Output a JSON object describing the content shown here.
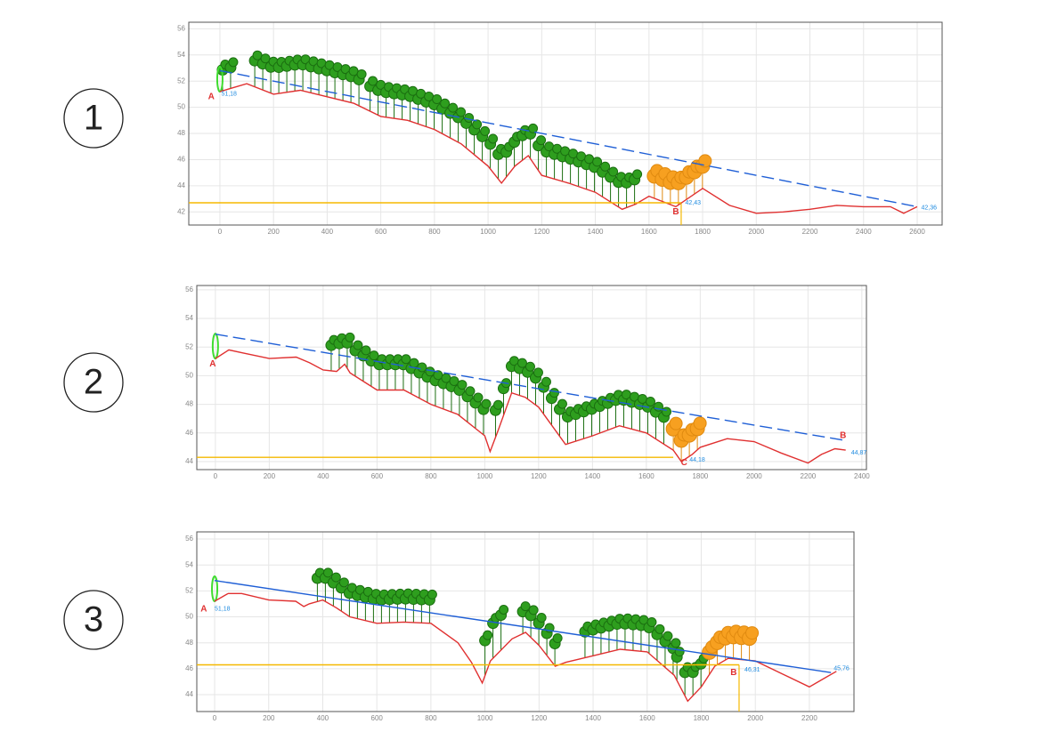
{
  "chart_data": [
    {
      "type": "line",
      "panel_label": "1",
      "xlim": [
        -116,
        2693
      ],
      "ylim": [
        41,
        56.5
      ],
      "xticks": [
        0,
        200,
        400,
        600,
        800,
        1000,
        1200,
        1400,
        1600,
        1800,
        2000,
        2200,
        2400,
        2600
      ],
      "yticks": [
        42,
        44,
        46,
        48,
        50,
        52,
        54,
        56
      ],
      "grid": true,
      "series": [
        {
          "color": "#e03030",
          "x": [
            0,
            100,
            200,
            300,
            400,
            500,
            600,
            700,
            800,
            900,
            1000,
            1050,
            1100,
            1150,
            1200,
            1300,
            1400,
            1500,
            1550,
            1600,
            1700,
            1800,
            1900,
            2000,
            2100,
            2200,
            2300,
            2400,
            2500,
            2550,
            2600
          ],
          "values": [
            51.2,
            51.8,
            51.0,
            51.3,
            50.8,
            50.3,
            49.3,
            49.0,
            48.3,
            47.2,
            45.5,
            44.2,
            45.5,
            46.3,
            44.8,
            44.2,
            43.5,
            42.2,
            42.6,
            43.2,
            42.4,
            43.8,
            42.5,
            41.9,
            42.0,
            42.2,
            42.5,
            42.4,
            42.4,
            41.9,
            42.4
          ]
        },
        {
          "color": "#1f5fd6",
          "dashed": true,
          "x": [
            0,
            2600
          ],
          "values": [
            52.8,
            42.4
          ]
        },
        {
          "color": "#f5b800",
          "x": [
            -116,
            1720
          ],
          "values": [
            42.7,
            42.7
          ]
        }
      ],
      "annotations": [
        "A",
        "51,18",
        "B",
        "42,43",
        "42,36"
      ]
    },
    {
      "type": "line",
      "panel_label": "2",
      "xlim": [
        -69,
        2417
      ],
      "ylim": [
        43.44,
        56.3
      ],
      "xticks": [
        0,
        200,
        400,
        600,
        800,
        1000,
        1200,
        1400,
        1600,
        1800,
        2000,
        2200,
        2400
      ],
      "yticks": [
        44,
        46,
        48,
        50,
        52,
        54,
        56
      ],
      "grid": true,
      "series": [
        {
          "color": "#e03030",
          "x": [
            0,
            50,
            100,
            200,
            300,
            350,
            400,
            450,
            480,
            500,
            600,
            700,
            800,
            900,
            1000,
            1020,
            1050,
            1100,
            1150,
            1200,
            1300,
            1400,
            1500,
            1600,
            1700,
            1730,
            1770,
            1800,
            1900,
            2000,
            2100,
            2200,
            2250,
            2300,
            2340
          ],
          "values": [
            51.2,
            51.8,
            51.6,
            51.2,
            51.3,
            50.9,
            50.4,
            50.3,
            50.8,
            50.2,
            49.0,
            49.0,
            48.0,
            47.3,
            45.8,
            44.7,
            46.2,
            48.8,
            48.5,
            47.8,
            45.2,
            45.8,
            46.5,
            46.0,
            44.8,
            44.0,
            44.5,
            45.0,
            45.6,
            45.4,
            44.6,
            43.9,
            44.5,
            44.9,
            44.8
          ]
        },
        {
          "color": "#1f5fd6",
          "dashed": true,
          "x": [
            0,
            2330
          ],
          "values": [
            52.9,
            45.5
          ]
        },
        {
          "color": "#f5b800",
          "x": [
            -69,
            1700
          ],
          "values": [
            44.3,
            44.3
          ]
        }
      ],
      "annotations": [
        "A",
        "B",
        "C",
        "44,18",
        "44,87"
      ]
    },
    {
      "type": "line",
      "panel_label": "3",
      "xlim": [
        -66,
        2365
      ],
      "ylim": [
        42.7,
        56.55
      ],
      "xticks": [
        0,
        200,
        400,
        600,
        800,
        1000,
        1200,
        1400,
        1600,
        1800,
        2000,
        2200
      ],
      "yticks": [
        44,
        46,
        48,
        50,
        52,
        54,
        56
      ],
      "grid": true,
      "series": [
        {
          "color": "#e03030",
          "x": [
            0,
            50,
            100,
            200,
            300,
            330,
            350,
            400,
            450,
            500,
            600,
            700,
            800,
            900,
            950,
            990,
            1020,
            1100,
            1150,
            1200,
            1260,
            1300,
            1400,
            1500,
            1600,
            1700,
            1750,
            1800,
            1850,
            1900,
            2000,
            2100,
            2200,
            2250,
            2300
          ],
          "values": [
            51.2,
            51.8,
            51.8,
            51.3,
            51.2,
            50.8,
            51.0,
            51.3,
            50.7,
            50.0,
            49.5,
            49.6,
            49.5,
            48.0,
            46.5,
            44.9,
            46.6,
            48.3,
            48.8,
            47.8,
            46.2,
            46.5,
            47.0,
            47.5,
            47.3,
            45.5,
            43.5,
            44.6,
            46.2,
            46.8,
            46.6,
            45.6,
            44.6,
            45.2,
            45.8
          ]
        },
        {
          "color": "#1f5fd6",
          "x": [
            0,
            2280
          ],
          "values": [
            52.8,
            45.7
          ]
        },
        {
          "color": "#f5b800",
          "x": [
            -66,
            1940
          ],
          "values": [
            46.3,
            46.3
          ]
        }
      ],
      "annotations": [
        "A",
        "51,18",
        "B",
        "46,31",
        "45,76"
      ]
    }
  ]
}
